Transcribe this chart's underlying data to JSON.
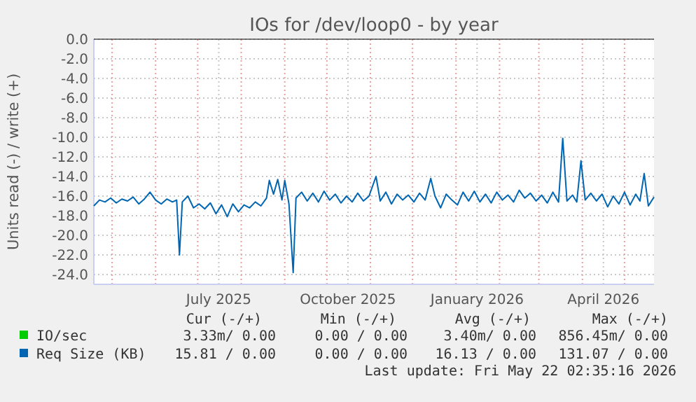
{
  "chart_data": {
    "type": "line",
    "title": "IOs for /dev/loop0 - by year",
    "ylabel": "Units read (-) / write (+)",
    "xlim": [
      "2025-04-18",
      "2026-05-22"
    ],
    "xticks": [
      {
        "value": "2025-05-01",
        "label": null
      },
      {
        "value": "2025-06-01",
        "label": null
      },
      {
        "value": "2025-07-01",
        "label": null
      },
      {
        "value": "2025-07-16",
        "label": "July 2025"
      },
      {
        "value": "2025-08-01",
        "label": null
      },
      {
        "value": "2025-09-01",
        "label": null
      },
      {
        "value": "2025-10-01",
        "label": null
      },
      {
        "value": "2025-10-16",
        "label": "October 2025"
      },
      {
        "value": "2025-11-01",
        "label": null
      },
      {
        "value": "2025-12-01",
        "label": null
      },
      {
        "value": "2026-01-01",
        "label": null
      },
      {
        "value": "2026-01-16",
        "label": "January 2026"
      },
      {
        "value": "2026-02-01",
        "label": null
      },
      {
        "value": "2026-03-01",
        "label": null
      },
      {
        "value": "2026-04-01",
        "label": null
      },
      {
        "value": "2026-04-16",
        "label": "April 2026"
      },
      {
        "value": "2026-05-01",
        "label": null
      }
    ],
    "ylim": [
      -25,
      0
    ],
    "yticks": [
      {
        "value": 0,
        "label": "0.0"
      },
      {
        "value": -2,
        "label": "-2.0"
      },
      {
        "value": -4,
        "label": "-4.0"
      },
      {
        "value": -6,
        "label": "-6.0"
      },
      {
        "value": -8,
        "label": "-8.0"
      },
      {
        "value": -10,
        "label": "-10.0"
      },
      {
        "value": -12,
        "label": "-12.0"
      },
      {
        "value": -14,
        "label": "-14.0"
      },
      {
        "value": -16,
        "label": "-16.0"
      },
      {
        "value": -18,
        "label": "-18.0"
      },
      {
        "value": -20,
        "label": "-20.0"
      },
      {
        "value": -22,
        "label": "-22.0"
      },
      {
        "value": -24,
        "label": "-24.0"
      }
    ],
    "grid": true,
    "legend": "bottom",
    "marker": "none",
    "line_style": "solid",
    "series": [
      {
        "name": "IO/sec",
        "color": "#00cc00"
      },
      {
        "name": "Req Size (KB)",
        "color": "#0066b3",
        "x": [
          "2025-04-18",
          "2025-04-22",
          "2025-04-26",
          "2025-04-30",
          "2025-05-04",
          "2025-05-08",
          "2025-05-12",
          "2025-05-16",
          "2025-05-20",
          "2025-05-24",
          "2025-05-28",
          "2025-06-01",
          "2025-06-05",
          "2025-06-09",
          "2025-06-13",
          "2025-06-16",
          "2025-06-18",
          "2025-06-20",
          "2025-06-24",
          "2025-06-28",
          "2025-07-02",
          "2025-07-06",
          "2025-07-10",
          "2025-07-14",
          "2025-07-18",
          "2025-07-22",
          "2025-07-26",
          "2025-07-30",
          "2025-08-03",
          "2025-08-07",
          "2025-08-11",
          "2025-08-15",
          "2025-08-19",
          "2025-08-21",
          "2025-08-24",
          "2025-08-27",
          "2025-08-30",
          "2025-09-01",
          "2025-09-04",
          "2025-09-07",
          "2025-09-09",
          "2025-09-13",
          "2025-09-17",
          "2025-09-21",
          "2025-09-25",
          "2025-09-29",
          "2025-10-03",
          "2025-10-07",
          "2025-10-11",
          "2025-10-15",
          "2025-10-19",
          "2025-10-23",
          "2025-10-27",
          "2025-10-31",
          "2025-11-05",
          "2025-11-08",
          "2025-11-12",
          "2025-11-16",
          "2025-11-20",
          "2025-11-24",
          "2025-11-28",
          "2025-12-02",
          "2025-12-06",
          "2025-12-10",
          "2025-12-14",
          "2025-12-17",
          "2025-12-21",
          "2025-12-25",
          "2025-12-29",
          "2026-01-02",
          "2026-01-06",
          "2026-01-10",
          "2026-01-14",
          "2026-01-18",
          "2026-01-22",
          "2026-01-26",
          "2026-01-30",
          "2026-02-03",
          "2026-02-07",
          "2026-02-11",
          "2026-02-15",
          "2026-02-19",
          "2026-02-23",
          "2026-02-27",
          "2026-03-03",
          "2026-03-07",
          "2026-03-11",
          "2026-03-15",
          "2026-03-18",
          "2026-03-21",
          "2026-03-25",
          "2026-03-28",
          "2026-03-31",
          "2026-04-03",
          "2026-04-07",
          "2026-04-11",
          "2026-04-15",
          "2026-04-19",
          "2026-04-23",
          "2026-04-27",
          "2026-05-01",
          "2026-05-05",
          "2026-05-09",
          "2026-05-12",
          "2026-05-15",
          "2026-05-18",
          "2026-05-22"
        ],
        "values": [
          -17.0,
          -16.4,
          -16.6,
          -16.2,
          -16.7,
          -16.3,
          -16.5,
          -16.1,
          -16.8,
          -16.3,
          -15.6,
          -16.4,
          -16.8,
          -16.3,
          -16.6,
          -16.4,
          -22.0,
          -16.6,
          -16.0,
          -17.2,
          -16.8,
          -17.3,
          -16.7,
          -17.8,
          -16.9,
          -18.1,
          -16.8,
          -17.6,
          -16.9,
          -17.2,
          -16.6,
          -17.0,
          -16.2,
          -14.4,
          -15.8,
          -14.3,
          -16.4,
          -14.4,
          -16.8,
          -23.8,
          -16.2,
          -15.6,
          -16.5,
          -15.7,
          -16.6,
          -15.5,
          -16.4,
          -15.8,
          -16.7,
          -16.0,
          -16.6,
          -15.7,
          -16.5,
          -16.0,
          -14.0,
          -16.5,
          -15.6,
          -16.8,
          -15.8,
          -16.4,
          -15.9,
          -16.6,
          -15.7,
          -16.4,
          -14.2,
          -16.0,
          -17.2,
          -15.8,
          -16.4,
          -16.9,
          -15.6,
          -16.5,
          -15.5,
          -16.6,
          -15.8,
          -16.7,
          -15.6,
          -16.4,
          -15.9,
          -16.6,
          -15.4,
          -16.2,
          -15.7,
          -16.5,
          -15.9,
          -16.7,
          -15.6,
          -16.6,
          -10.1,
          -16.5,
          -15.9,
          -16.6,
          -12.4,
          -16.4,
          -15.7,
          -16.5,
          -15.8,
          -17.1,
          -16.0,
          -16.8,
          -15.6,
          -16.9,
          -15.8,
          -16.5,
          -13.7,
          -17.0,
          -16.1
        ]
      }
    ],
    "annotations": [
      "Cur (-/+)",
      "Min (-/+)",
      "Avg (-/+)",
      "Max (-/+)",
      "3.33m/ 0.00",
      "0.00 / 0.00",
      "3.40m/ 0.00",
      "856.45m/ 0.00",
      "15.81 / 0.00",
      "0.00 / 0.00",
      "16.13 / 0.00",
      "131.07 / 0.00",
      "Last update: Fri May 22 02:35:16 2026"
    ]
  }
}
